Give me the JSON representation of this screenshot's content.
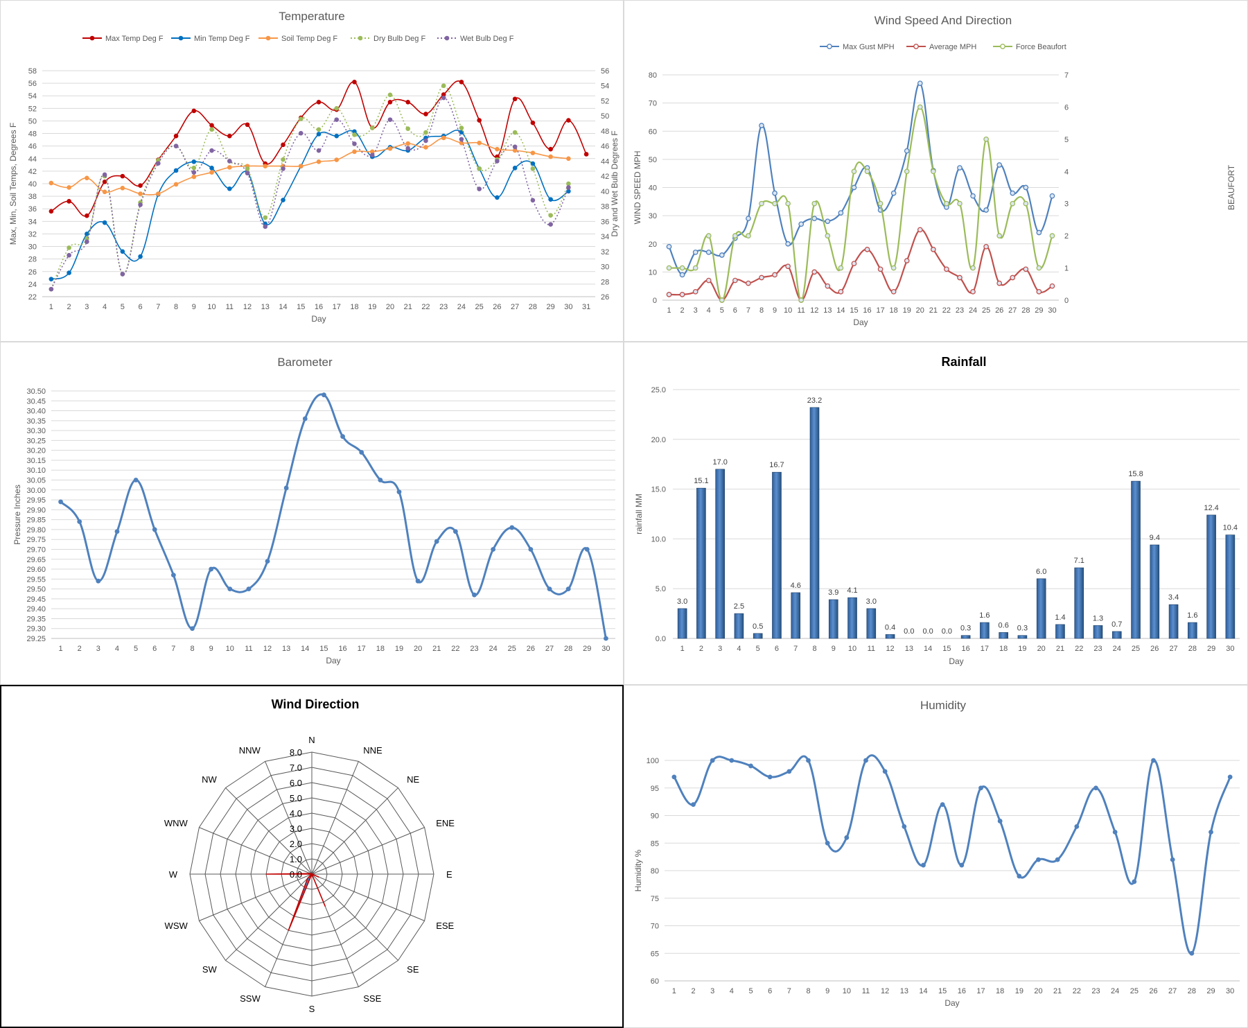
{
  "chart_data": [
    {
      "id": "temperature",
      "type": "line",
      "title": "Temperature",
      "xlabel": "Day",
      "ylabel": "Max, Min, Soil Temps, Degrees F",
      "y2label": "Dry and Wet Bulb Degrees F",
      "ylim": [
        22,
        58
      ],
      "y2lim": [
        26,
        56
      ],
      "x": [
        1,
        2,
        3,
        4,
        5,
        6,
        7,
        8,
        9,
        10,
        11,
        12,
        13,
        14,
        15,
        16,
        17,
        18,
        19,
        20,
        21,
        22,
        23,
        24,
        25,
        26,
        27,
        28,
        29,
        30,
        31
      ],
      "series": [
        {
          "name": "Max Temp Deg F",
          "axis": "left",
          "color": "#c00000",
          "dashed": false,
          "values": [
            35.6,
            37.2,
            34.9,
            40.3,
            41.2,
            39.7,
            43.8,
            47.6,
            51.6,
            49.3,
            47.6,
            49.4,
            43.2,
            46.2,
            50.5,
            53,
            51.8,
            56.2,
            48.9,
            53,
            53,
            51.1,
            54.2,
            56.2,
            50.1,
            44.3,
            53.5,
            49.7,
            45.5,
            50.1,
            44.7
          ]
        },
        {
          "name": "Min Temp Deg F",
          "axis": "left",
          "color": "#0070c0",
          "dashed": false,
          "values": [
            24.8,
            25.8,
            32,
            33.8,
            29.2,
            28.4,
            38.3,
            42.1,
            43.5,
            42.5,
            39.2,
            41.8,
            33.6,
            37.4,
            42.8,
            47.9,
            47.6,
            48.3,
            44.3,
            45.8,
            45.3,
            47.3,
            47.6,
            48.2,
            42.4,
            37.8,
            42.5,
            43.2,
            37.5,
            38.8,
            null
          ]
        },
        {
          "name": "Soil Temp Deg F",
          "axis": "left",
          "color": "#f79646",
          "dashed": false,
          "values": [
            40.1,
            39.4,
            40.9,
            38.7,
            39.3,
            38.4,
            38.4,
            39.9,
            41.1,
            41.8,
            42.6,
            42.8,
            42.8,
            42.8,
            42.8,
            43.5,
            43.8,
            45.1,
            45.1,
            45.6,
            46.4,
            45.8,
            47.3,
            46.5,
            46.5,
            45.5,
            45.3,
            44.9,
            44.3,
            44,
            null
          ]
        },
        {
          "name": "Dry Bulb Deg F",
          "axis": "right",
          "color": "#9bbb59",
          "dashed": true,
          "values": [
            27,
            32.5,
            33.7,
            42,
            29,
            38.5,
            44.1,
            46,
            43.1,
            48.2,
            44,
            43,
            36.5,
            44.2,
            49.6,
            48.2,
            51,
            47.5,
            48.4,
            52.8,
            48.3,
            47.8,
            54,
            48.4,
            43,
            44.2,
            47.8,
            43,
            36.8,
            41,
            null
          ]
        },
        {
          "name": "Wet Bulb Deg F",
          "axis": "right",
          "color": "#8064a2",
          "dashed": true,
          "values": [
            27,
            31.5,
            33.3,
            42.2,
            29,
            38.2,
            43.7,
            46,
            42.5,
            45.4,
            44,
            42.4,
            35.3,
            43,
            47.7,
            45.4,
            49.5,
            46.3,
            44.8,
            49.5,
            45.7,
            46.7,
            52.4,
            46.9,
            40.3,
            44,
            45.9,
            38.8,
            35.6,
            40.5,
            null
          ]
        }
      ]
    },
    {
      "id": "wind",
      "type": "line",
      "title": "Wind Speed And Direction",
      "xlabel": "Day",
      "ylabel": "WIND SPEED MPH",
      "y2label": "BEAUFORT",
      "ylim": [
        0,
        80
      ],
      "y2lim": [
        0,
        7
      ],
      "x": [
        1,
        2,
        3,
        4,
        5,
        6,
        7,
        8,
        9,
        10,
        11,
        12,
        13,
        14,
        15,
        16,
        17,
        18,
        19,
        20,
        21,
        22,
        23,
        24,
        25,
        26,
        27,
        28,
        29,
        30
      ],
      "series": [
        {
          "name": "Max Gust MPH",
          "axis": "left",
          "color": "#4f81bd",
          "values": [
            19,
            9,
            17,
            17,
            16,
            22,
            29,
            62,
            38,
            20,
            27,
            29,
            28,
            31,
            40,
            47,
            32,
            38,
            53,
            77,
            46,
            33,
            47,
            37,
            32,
            48,
            38,
            40,
            24,
            37
          ]
        },
        {
          "name": "Average MPH",
          "axis": "left",
          "color": "#c0504d",
          "values": [
            2,
            2,
            3,
            7,
            0,
            7,
            6,
            8,
            9,
            12,
            0,
            10,
            5,
            3,
            13,
            18,
            11,
            3,
            14,
            25,
            18,
            11,
            8,
            3,
            19,
            6,
            8,
            11,
            3,
            5
          ]
        },
        {
          "name": "Force Beaufort",
          "axis": "right",
          "color": "#9bbb59",
          "values": [
            1,
            1,
            1,
            2,
            0,
            2,
            2,
            3,
            3,
            3,
            0,
            3,
            2,
            1,
            4,
            4,
            3,
            1,
            4,
            6,
            4,
            3,
            3,
            1,
            5,
            2,
            3,
            3,
            1,
            2
          ]
        }
      ]
    },
    {
      "id": "barometer",
      "type": "line",
      "title": "Barometer",
      "xlabel": "Day",
      "ylabel": "Pressure Inches",
      "ylim": [
        29.25,
        30.5
      ],
      "x": [
        1,
        2,
        3,
        4,
        5,
        6,
        7,
        8,
        9,
        10,
        11,
        12,
        13,
        14,
        15,
        16,
        17,
        18,
        19,
        20,
        21,
        22,
        23,
        24,
        25,
        26,
        27,
        28,
        29,
        30
      ],
      "series": [
        {
          "name": "Pressure",
          "color": "#4f81bd",
          "values": [
            29.94,
            29.84,
            29.54,
            29.79,
            30.05,
            29.8,
            29.57,
            29.3,
            29.6,
            29.5,
            29.5,
            29.64,
            30.01,
            30.36,
            30.48,
            30.27,
            30.19,
            30.05,
            29.99,
            29.54,
            29.74,
            29.79,
            29.47,
            29.7,
            29.81,
            29.7,
            29.5,
            29.5,
            29.7,
            29.25
          ]
        }
      ]
    },
    {
      "id": "rainfall",
      "type": "bar",
      "title": "Rainfall",
      "xlabel": "Day",
      "ylabel": "rainfall MM",
      "ylim": [
        0,
        25
      ],
      "categories": [
        "1",
        "2",
        "3",
        "4",
        "5",
        "6",
        "7",
        "8",
        "9",
        "10",
        "11",
        "12",
        "13",
        "14",
        "15",
        "16",
        "17",
        "18",
        "19",
        "20",
        "21",
        "22",
        "23",
        "24",
        "25",
        "26",
        "27",
        "28",
        "29",
        "30"
      ],
      "values": [
        3.0,
        15.1,
        17.0,
        2.5,
        0.5,
        16.7,
        4.6,
        23.2,
        3.9,
        4.1,
        3.0,
        0.4,
        0.0,
        0.0,
        0.0,
        0.3,
        1.6,
        0.6,
        0.3,
        6.0,
        1.4,
        7.1,
        1.3,
        0.7,
        15.8,
        9.4,
        3.4,
        1.6,
        12.4,
        10.4
      ],
      "color": "#4f81bd"
    },
    {
      "id": "wind_direction",
      "type": "radar",
      "title": "Wind Direction",
      "categories": [
        "N",
        "NNE",
        "NE",
        "ENE",
        "E",
        "ESE",
        "SE",
        "SSE",
        "S",
        "SSW",
        "SW",
        "WSW",
        "W",
        "WNW",
        "NW",
        "NNW"
      ],
      "ticks": [
        "0.0",
        "1.0",
        "2.0",
        "3.0",
        "4.0",
        "5.0",
        "6.0",
        "7.0",
        "8.0"
      ],
      "rlim": [
        0,
        8
      ],
      "values": [
        0,
        0,
        0,
        0,
        0,
        0.5,
        0,
        2.3,
        0,
        4,
        0.4,
        0,
        3,
        0.1,
        0,
        0
      ],
      "fill": "#4f81bd",
      "stroke": "#c00000"
    },
    {
      "id": "humidity",
      "type": "line",
      "title": "Humidity",
      "xlabel": "Day",
      "ylabel": "Humidity %",
      "ylim": [
        60,
        100
      ],
      "x": [
        1,
        2,
        3,
        4,
        5,
        6,
        7,
        8,
        9,
        10,
        11,
        12,
        13,
        14,
        15,
        16,
        17,
        18,
        19,
        20,
        21,
        22,
        23,
        24,
        25,
        26,
        27,
        28,
        29,
        30
      ],
      "series": [
        {
          "name": "Humidity",
          "color": "#4f81bd",
          "values": [
            97,
            92,
            100,
            100,
            99,
            97,
            98,
            100,
            85,
            86,
            100,
            98,
            88,
            81,
            92,
            81,
            95,
            89,
            79,
            82,
            82,
            88,
            95,
            87,
            78,
            100,
            82,
            65,
            87,
            97
          ]
        }
      ]
    }
  ]
}
